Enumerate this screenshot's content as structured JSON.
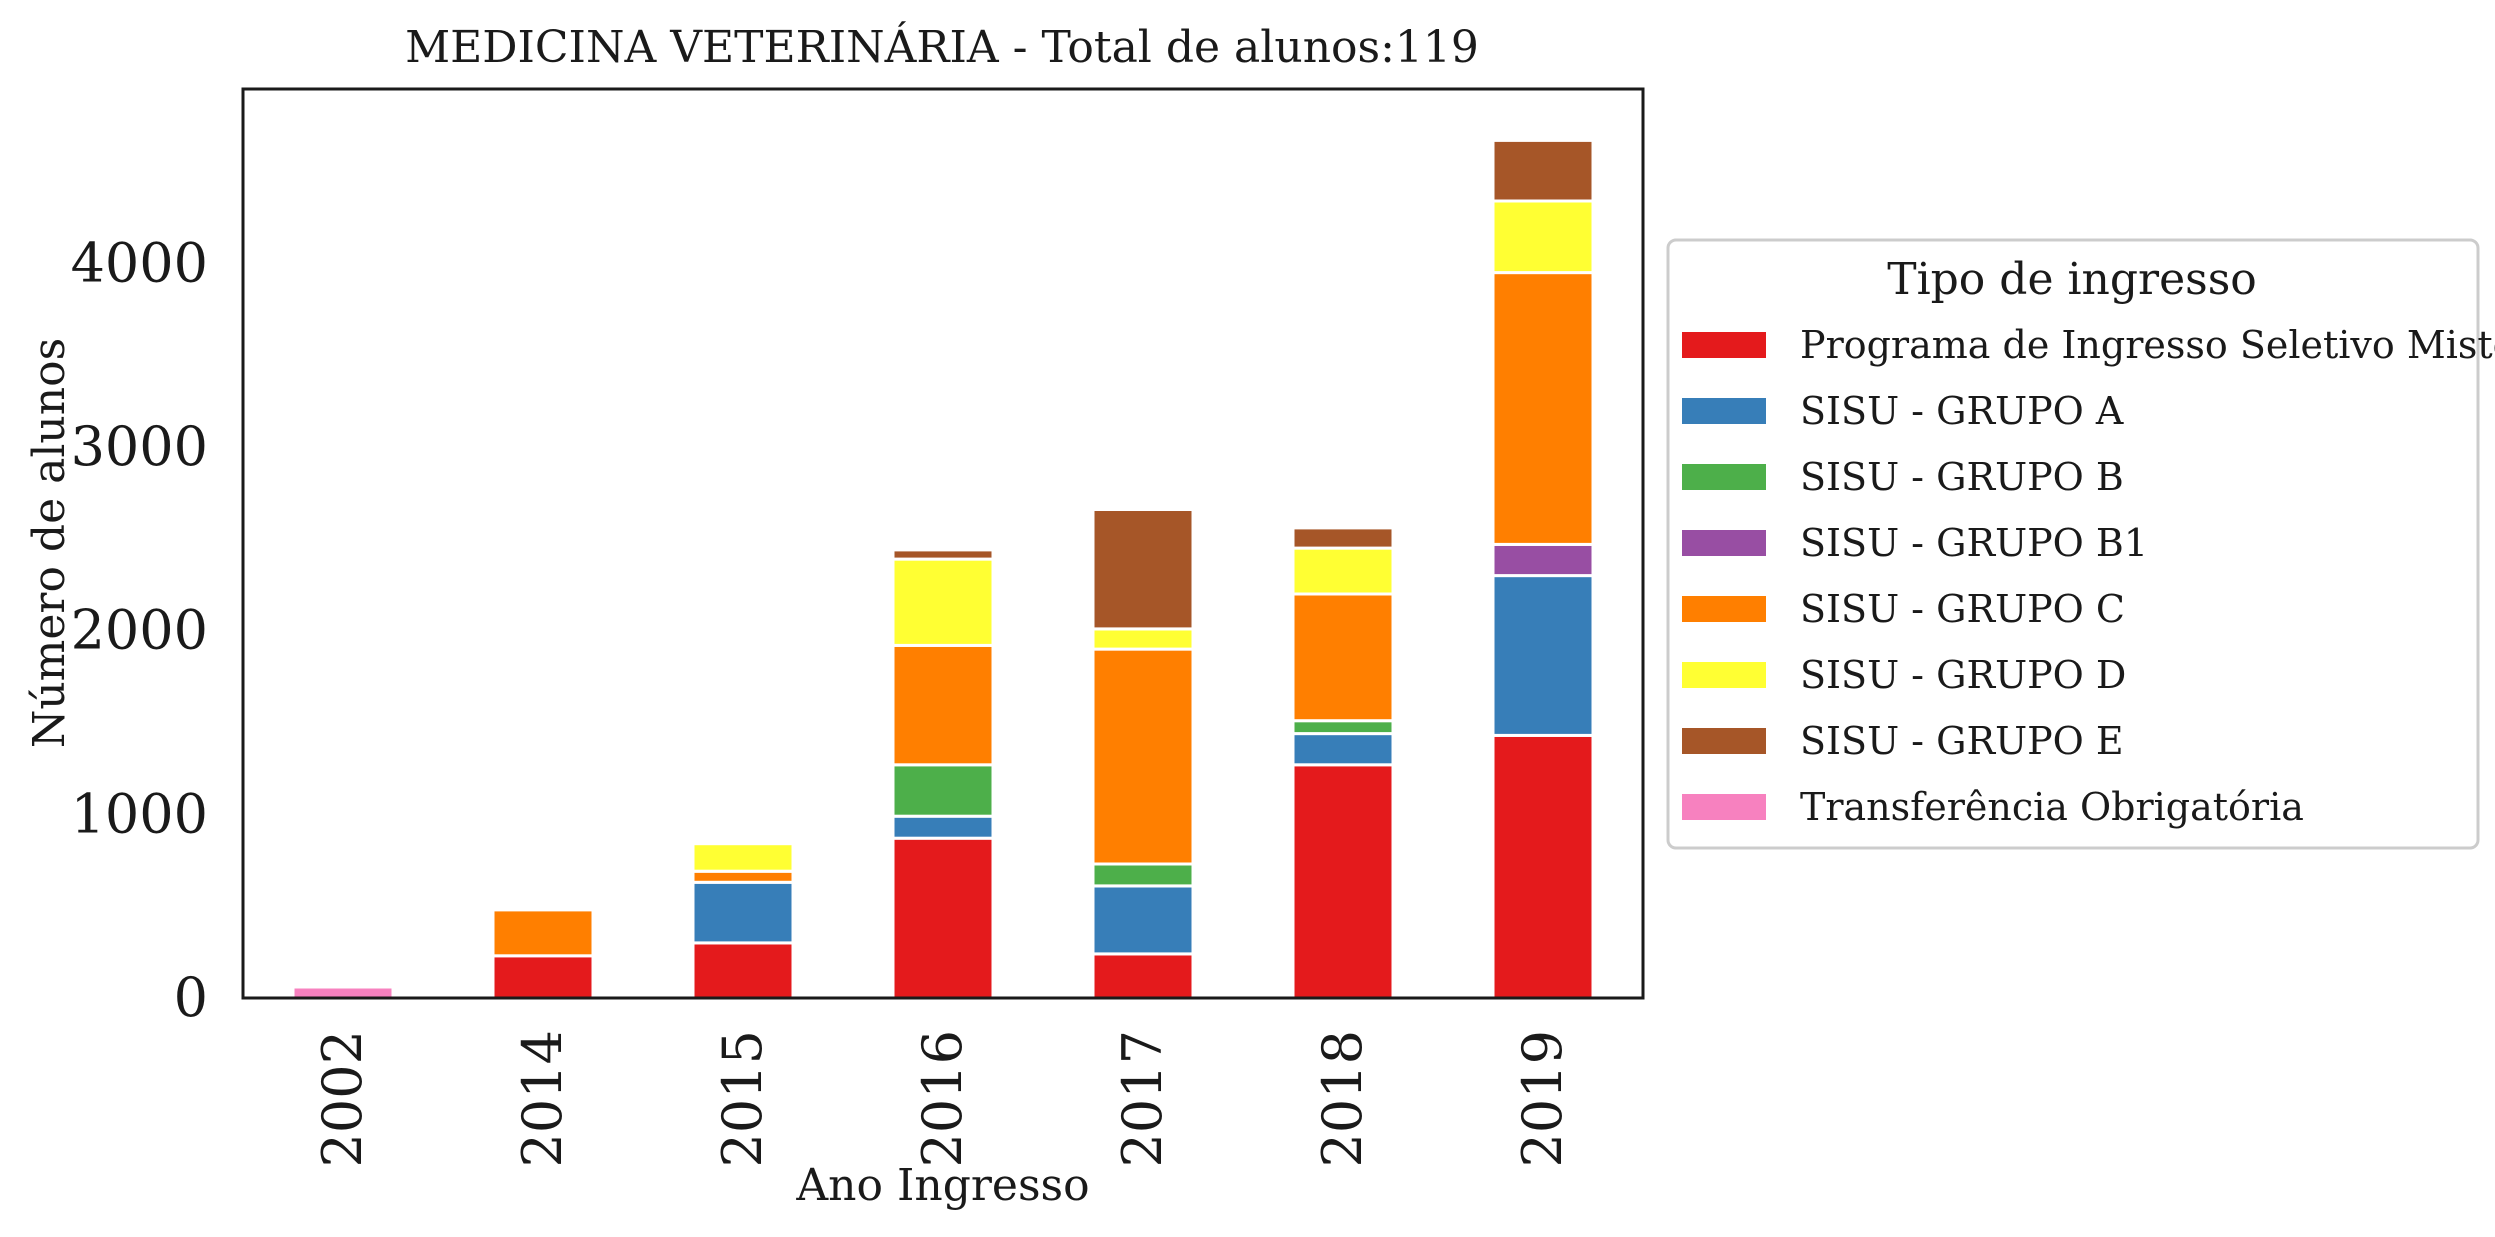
{
  "chart_data": {
    "type": "bar",
    "stacked": true,
    "title": "MEDICINA VETERINÁRIA - Total de alunos:119",
    "xlabel": "Ano Ingresso",
    "ylabel": "Número de alunos",
    "categories": [
      "2002",
      "2014",
      "2015",
      "2016",
      "2017",
      "2018",
      "2019"
    ],
    "ylim": [
      0,
      4950
    ],
    "yticks": [
      0,
      1000,
      2000,
      3000,
      4000
    ],
    "grid": false,
    "legend": {
      "title": "Tipo de ingresso",
      "position": "right"
    },
    "series": [
      {
        "name": "Programa de Ingresso Seletivo Misto",
        "color": "#e41a1c",
        "values": [
          0,
          230,
          300,
          870,
          240,
          1270,
          1430
        ]
      },
      {
        "name": "SISU - GRUPO A",
        "color": "#377eb8",
        "values": [
          0,
          0,
          330,
          120,
          370,
          170,
          870
        ]
      },
      {
        "name": "SISU - GRUPO B",
        "color": "#4daf4a",
        "values": [
          0,
          0,
          0,
          280,
          120,
          70,
          0
        ]
      },
      {
        "name": "SISU - GRUPO B1",
        "color": "#984ea3",
        "values": [
          0,
          0,
          0,
          0,
          0,
          0,
          170
        ]
      },
      {
        "name": "SISU - GRUPO C",
        "color": "#ff7f00",
        "values": [
          0,
          250,
          60,
          650,
          1170,
          690,
          1480
        ]
      },
      {
        "name": "SISU - GRUPO D",
        "color": "#ffff33",
        "values": [
          0,
          0,
          150,
          470,
          110,
          250,
          390
        ]
      },
      {
        "name": "SISU - GRUPO E",
        "color": "#a65628",
        "values": [
          0,
          0,
          0,
          50,
          650,
          110,
          330
        ]
      },
      {
        "name": "Transferência Obrigatória",
        "color": "#f781bf",
        "values": [
          60,
          0,
          0,
          0,
          0,
          0,
          0
        ]
      }
    ]
  }
}
